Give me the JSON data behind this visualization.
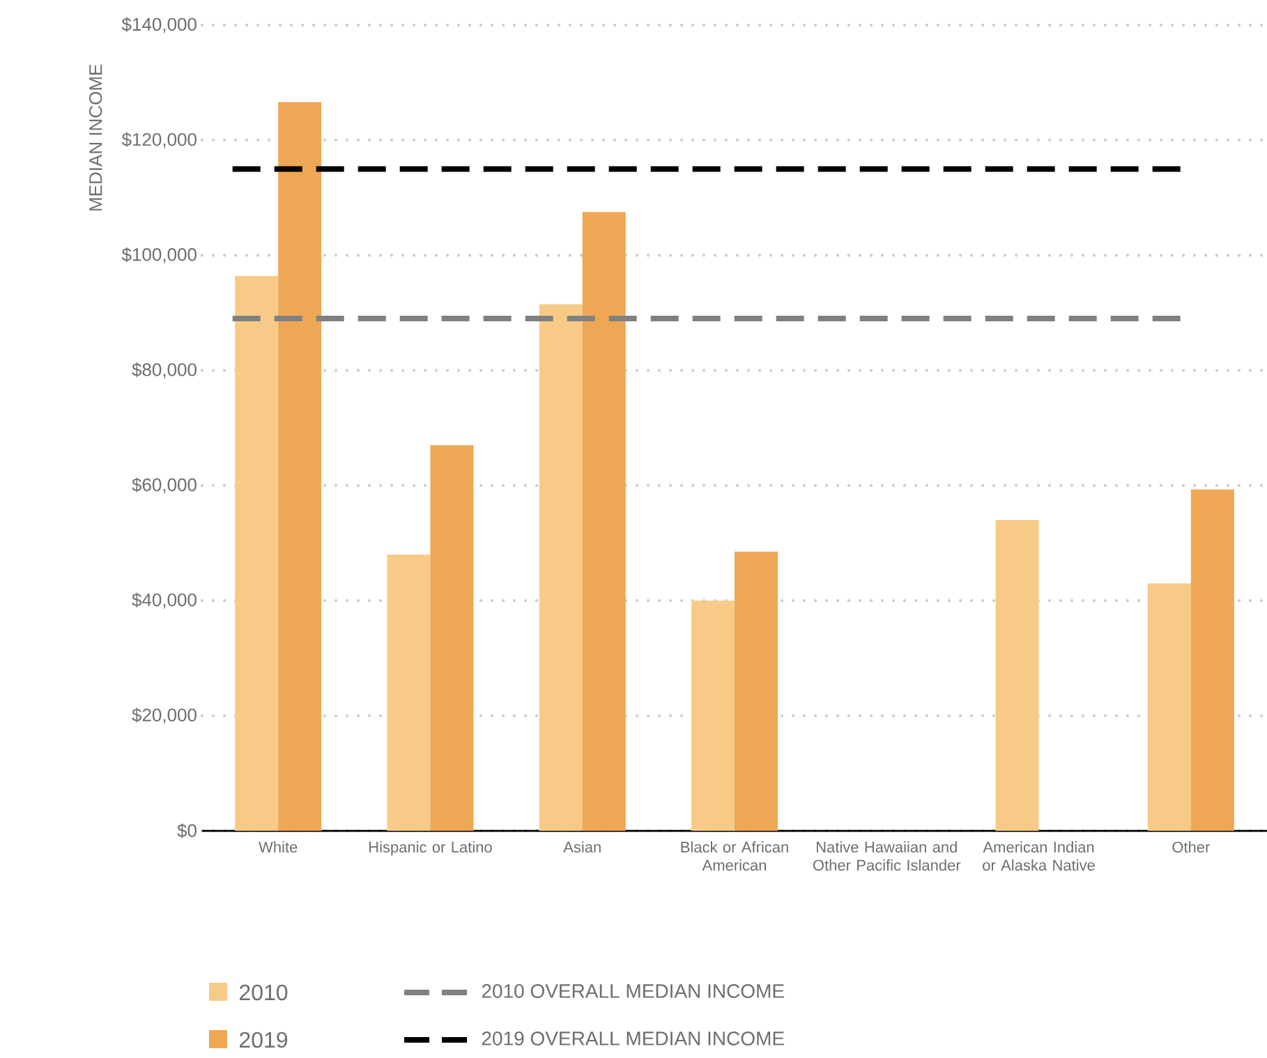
{
  "chart_data": {
    "type": "bar",
    "ylabel": "MEDIAN INCOME",
    "categories": [
      "White",
      "Hispanic or Latino",
      "Asian",
      "Black or African American",
      "Native Hawaiian and Other Pacific Islander",
      "American Indian or Alaska Native",
      "Other"
    ],
    "series": [
      {
        "name": "2010",
        "color": "#f7cb87",
        "values": [
          96400,
          48000,
          91500,
          40000,
          null,
          54000,
          43000
        ]
      },
      {
        "name": "2019",
        "color": "#eea754",
        "values": [
          126600,
          67000,
          107500,
          48500,
          null,
          null,
          59300
        ]
      }
    ],
    "ylim": [
      0,
      140000
    ],
    "yticks": [
      {
        "value": 0,
        "label": "$0"
      },
      {
        "value": 20000,
        "label": "$20,000"
      },
      {
        "value": 40000,
        "label": "$40,000"
      },
      {
        "value": 60000,
        "label": "$60,000"
      },
      {
        "value": 80000,
        "label": "$80,000"
      },
      {
        "value": 100000,
        "label": "$100,000"
      },
      {
        "value": 120000,
        "label": "$120,000"
      },
      {
        "value": 140000,
        "label": "$140,000"
      }
    ],
    "ref_lines": [
      {
        "axis": "y",
        "value": 89000,
        "label": "2010 OVERALL MEDIAN INCOME",
        "color": "#808080",
        "line_style": "dashed"
      },
      {
        "axis": "y",
        "value": 115000,
        "label": "2019 OVERALL MEDIAN INCOME",
        "color": "#000000",
        "line_style": "dashed"
      }
    ],
    "grid": "y",
    "legend": "bottom left"
  }
}
